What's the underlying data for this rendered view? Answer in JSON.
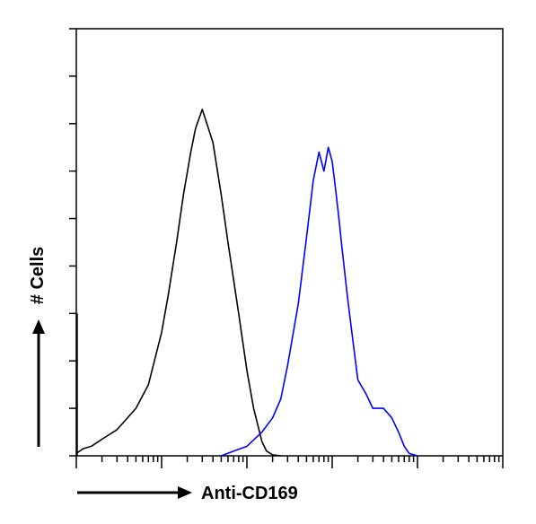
{
  "chart_data": {
    "type": "line",
    "title": "",
    "xlabel": "Anti-CD169",
    "ylabel": "# Cells",
    "x_scale": "log",
    "xlim": [
      1,
      100000
    ],
    "ylim": [
      0,
      9
    ],
    "y_tick_values": [
      0,
      1,
      2,
      3,
      4,
      5,
      6,
      7,
      8,
      9
    ],
    "x_tick_labels": [],
    "y_tick_labels": [],
    "grid": false,
    "legend": "none",
    "series": [
      {
        "color": "#000000",
        "x": [
          1,
          1.2,
          1.5,
          2,
          3,
          5,
          7,
          10,
          12,
          15,
          18,
          22,
          25,
          30,
          40,
          50,
          60,
          80,
          100,
          120,
          150,
          170,
          200,
          250
        ],
        "y": [
          0.05,
          0.15,
          0.2,
          0.35,
          0.55,
          1.0,
          1.5,
          2.6,
          3.4,
          4.5,
          5.5,
          6.4,
          6.9,
          7.3,
          6.6,
          5.5,
          4.5,
          3.0,
          1.8,
          1.0,
          0.3,
          0.1,
          0.02,
          0
        ]
      },
      {
        "color": "#0000ff",
        "x": [
          50,
          70,
          100,
          150,
          200,
          250,
          300,
          400,
          500,
          600,
          700,
          800,
          900,
          1000,
          1100,
          1200,
          1300,
          1500,
          1700,
          2000,
          2500,
          3000,
          4000,
          5000,
          6000,
          7000,
          8000,
          10000
        ],
        "y": [
          0,
          0.1,
          0.2,
          0.5,
          0.8,
          1.2,
          1.9,
          3.2,
          4.6,
          5.8,
          6.4,
          6.0,
          6.5,
          6.2,
          5.6,
          5.0,
          4.4,
          3.4,
          2.6,
          1.6,
          1.3,
          1.0,
          1.0,
          0.8,
          0.5,
          0.2,
          0.05,
          0
        ]
      }
    ]
  }
}
